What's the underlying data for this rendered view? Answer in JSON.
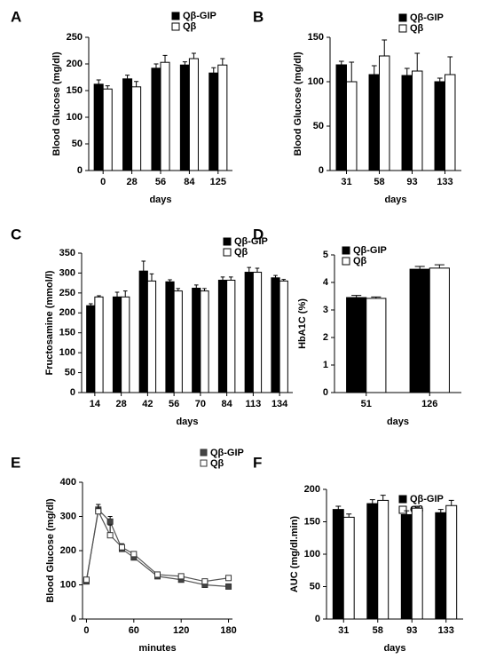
{
  "chart_data": [
    {
      "type": "bar",
      "label": "A",
      "ylabel": "Blood Glucose (mg/dl)",
      "xlabel": "days",
      "categories": [
        "0",
        "28",
        "56",
        "84",
        "125"
      ],
      "series": [
        {
          "name": "Qβ-GIP",
          "color": "#000000",
          "values": [
            162,
            172,
            192,
            198,
            183
          ],
          "errors": [
            8,
            7,
            8,
            6,
            10
          ]
        },
        {
          "name": "Qβ",
          "color": "#ffffff",
          "values": [
            153,
            157,
            203,
            210,
            198
          ],
          "errors": [
            6,
            10,
            13,
            10,
            12
          ]
        }
      ],
      "ylim": [
        0,
        250
      ],
      "yticks": [
        0,
        50,
        100,
        150,
        200,
        250
      ],
      "legend": "upper right"
    },
    {
      "type": "bar",
      "label": "B",
      "ylabel": "Blood Glucose (mg/dl)",
      "xlabel": "days",
      "categories": [
        "31",
        "58",
        "93",
        "133"
      ],
      "series": [
        {
          "name": "Qβ-GIP",
          "color": "#000000",
          "values": [
            119,
            108,
            107,
            100
          ],
          "errors": [
            4,
            10,
            8,
            4
          ]
        },
        {
          "name": "Qβ",
          "color": "#ffffff",
          "values": [
            100,
            129,
            112,
            108
          ],
          "errors": [
            22,
            18,
            20,
            20
          ]
        }
      ],
      "ylim": [
        0,
        150
      ],
      "yticks": [
        0,
        50,
        100,
        150
      ],
      "legend": "upper right"
    },
    {
      "type": "bar",
      "label": "C",
      "ylabel": "Fructosamine (mmol/l)",
      "xlabel": "days",
      "categories": [
        "14",
        "28",
        "42",
        "56",
        "70",
        "84",
        "113",
        "134"
      ],
      "series": [
        {
          "name": "Qβ-GIP",
          "color": "#000000",
          "values": [
            218,
            240,
            305,
            278,
            262,
            282,
            302,
            288
          ],
          "errors": [
            5,
            12,
            25,
            5,
            8,
            8,
            12,
            6
          ]
        },
        {
          "name": "Qβ",
          "color": "#ffffff",
          "values": [
            240,
            240,
            280,
            255,
            255,
            282,
            302,
            280
          ],
          "errors": [
            3,
            15,
            18,
            6,
            6,
            8,
            10,
            4
          ]
        }
      ],
      "ylim": [
        0,
        350
      ],
      "yticks": [
        0,
        50,
        100,
        150,
        200,
        250,
        300,
        350
      ],
      "legend": "upper right"
    },
    {
      "type": "bar",
      "label": "D",
      "ylabel": "HbA1C (%)",
      "xlabel": "days",
      "categories": [
        "51",
        "126"
      ],
      "series": [
        {
          "name": "Qβ-GIP",
          "color": "#000000",
          "values": [
            3.45,
            4.48
          ],
          "errors": [
            0.08,
            0.1
          ]
        },
        {
          "name": "Qβ",
          "color": "#ffffff",
          "values": [
            3.42,
            4.52
          ],
          "errors": [
            0.05,
            0.12
          ]
        }
      ],
      "ylim": [
        0,
        5
      ],
      "yticks": [
        0,
        1,
        2,
        3,
        4,
        5
      ],
      "legend": "upper left"
    },
    {
      "type": "line",
      "label": "E",
      "ylabel": "Blood Glucose (mg/dl)",
      "xlabel": "minutes",
      "x": [
        0,
        15,
        30,
        45,
        60,
        90,
        120,
        150,
        180
      ],
      "series": [
        {
          "name": "Qβ-GIP",
          "color": "#444444",
          "values": [
            110,
            320,
            285,
            205,
            180,
            125,
            115,
            100,
            95
          ],
          "errors": [
            5,
            15,
            15,
            8,
            5,
            5,
            5,
            5,
            5
          ]
        },
        {
          "name": "Qβ",
          "color": "#ffffff",
          "values": [
            115,
            315,
            245,
            210,
            190,
            130,
            125,
            110,
            120
          ],
          "errors": [
            5,
            20,
            30,
            10,
            5,
            5,
            5,
            5,
            5
          ]
        }
      ],
      "xlim": [
        -5,
        185
      ],
      "xticks": [
        0,
        60,
        120,
        180
      ],
      "ylim": [
        0,
        400
      ],
      "yticks": [
        0,
        100,
        200,
        300,
        400
      ],
      "legend": "upper right"
    },
    {
      "type": "bar",
      "label": "F",
      "ylabel": "AUC (mg/dl.min)",
      "xlabel": "days",
      "categories": [
        "31",
        "58",
        "93",
        "133"
      ],
      "series": [
        {
          "name": "Qβ-GIP",
          "color": "#000000",
          "values": [
            169,
            178,
            161,
            164
          ],
          "errors": [
            5,
            6,
            6,
            5
          ]
        },
        {
          "name": "Qβ",
          "color": "#ffffff",
          "values": [
            157,
            183,
            171,
            175
          ],
          "errors": [
            5,
            8,
            3,
            8
          ]
        }
      ],
      "ylim": [
        0,
        200
      ],
      "yticks": [
        0,
        50,
        100,
        150,
        200
      ],
      "legend": "upper right"
    }
  ]
}
